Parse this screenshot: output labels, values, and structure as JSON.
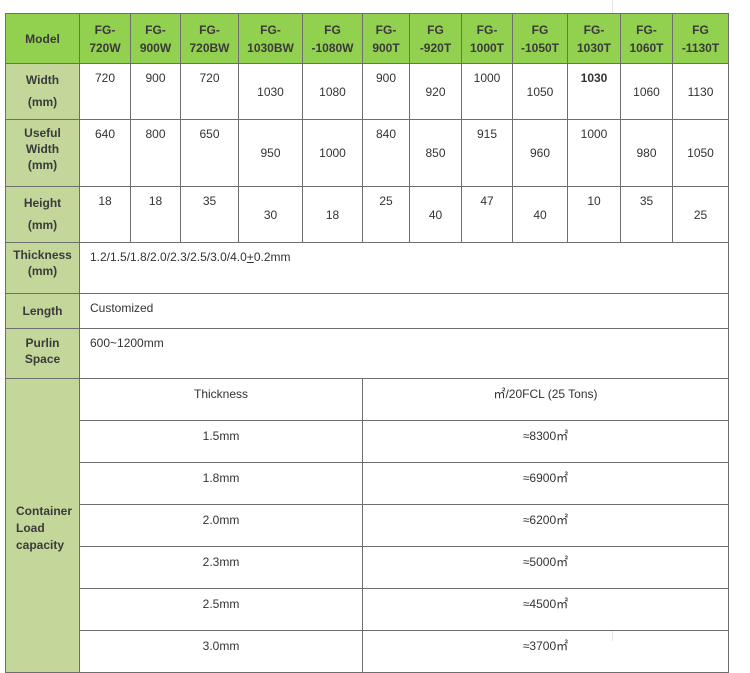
{
  "header": {
    "label": "Model",
    "models": [
      [
        "FG-",
        "720W"
      ],
      [
        "FG-",
        "900W"
      ],
      [
        "FG-",
        "720BW"
      ],
      [
        "FG-",
        "1030BW"
      ],
      [
        "FG",
        "-1080W"
      ],
      [
        "FG-",
        "900T"
      ],
      [
        "FG",
        "-920T"
      ],
      [
        "FG-",
        "1000T"
      ],
      [
        "FG",
        "-1050T"
      ],
      [
        "FG-",
        "1030T"
      ],
      [
        "FG-",
        "1060T"
      ],
      [
        "FG",
        "-1130T"
      ]
    ]
  },
  "width": {
    "label": [
      "Width",
      "(mm)"
    ],
    "values": [
      "720",
      "900",
      "720",
      "1030",
      "1080",
      "900",
      "920",
      "1000",
      "1050",
      "1030",
      "1060",
      "1130"
    ]
  },
  "useful_width": {
    "label": [
      "Useful",
      "Width",
      "(mm)"
    ],
    "values": [
      "640",
      "800",
      "650",
      "950",
      "1000",
      "840",
      "850",
      "915",
      "960",
      "1000",
      "980",
      "1050"
    ]
  },
  "height": {
    "label": [
      "Height",
      "(mm)"
    ],
    "values": [
      "18",
      "18",
      "35",
      "30",
      "18",
      "25",
      "40",
      "47",
      "40",
      "10",
      "35",
      "25"
    ]
  },
  "thickness": {
    "label": [
      "Thickness",
      "(mm)"
    ],
    "value_pre": "1.2/1.5/1.8/2.0/2.3/2.5/3.0/4.0",
    "value_pm": "+",
    "value_post": "0.2mm"
  },
  "length": {
    "label": "Length",
    "value": "Customized"
  },
  "purlin": {
    "label": [
      "Purlin",
      "Space"
    ],
    "value": "600~1200mm"
  },
  "container": {
    "label": [
      "Container",
      "Load",
      "capacity"
    ],
    "col_headers": [
      "Thickness",
      "㎡/20FCL (25 Tons)"
    ],
    "rows": [
      [
        "1.5mm",
        "≈8300㎡"
      ],
      [
        "1.8mm",
        "≈6900㎡"
      ],
      [
        "2.0mm",
        "≈6200㎡"
      ],
      [
        "2.3mm",
        "≈5000㎡"
      ],
      [
        "2.5mm",
        "≈4500㎡"
      ],
      [
        "3.0mm",
        "≈3700㎡"
      ]
    ]
  },
  "colors": {
    "header_bg": "#92d050",
    "label_bg": "#c4d79b",
    "border": "#6e6e6e"
  }
}
